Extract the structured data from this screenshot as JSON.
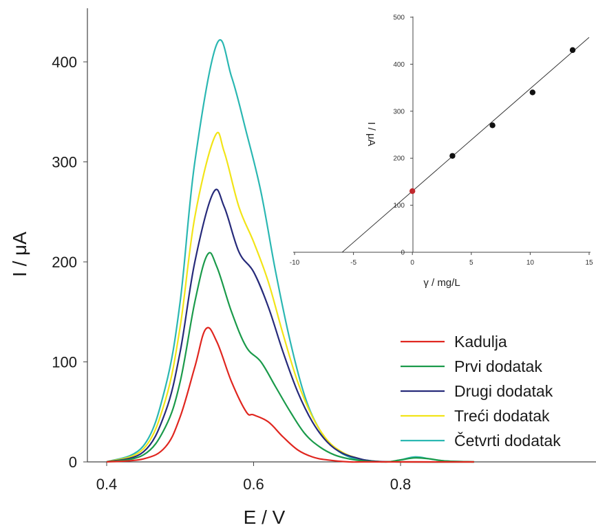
{
  "chart_data": [
    {
      "type": "line",
      "xlabel": "E / V",
      "ylabel": "I / μA",
      "xlim": [
        0.38,
        0.95
      ],
      "ylim": [
        0,
        440
      ],
      "xticks": [
        "0.4",
        "0.6",
        "0.8"
      ],
      "yticks": [
        "0",
        "100",
        "200",
        "300",
        "400"
      ],
      "grid": false,
      "legend_position": "bottom-right",
      "series": [
        {
          "name": "Kadulja",
          "color": "#e0261f",
          "x": [
            0.4,
            0.45,
            0.48,
            0.5,
            0.52,
            0.535,
            0.55,
            0.57,
            0.59,
            0.6,
            0.62,
            0.64,
            0.66,
            0.68,
            0.7,
            0.73,
            0.75,
            0.8,
            0.85,
            0.9
          ],
          "y": [
            0,
            3,
            15,
            45,
            95,
            133,
            120,
            80,
            50,
            47,
            40,
            25,
            12,
            5,
            2,
            0,
            0,
            0,
            0,
            0
          ]
        },
        {
          "name": "Prvi dodatak",
          "color": "#1a9a4a",
          "x": [
            0.4,
            0.45,
            0.48,
            0.5,
            0.52,
            0.537,
            0.55,
            0.57,
            0.59,
            0.61,
            0.63,
            0.65,
            0.67,
            0.69,
            0.71,
            0.73,
            0.75,
            0.78,
            0.8,
            0.82,
            0.84,
            0.86,
            0.9
          ],
          "y": [
            0,
            7,
            35,
            80,
            160,
            207,
            195,
            150,
            115,
            100,
            75,
            50,
            28,
            15,
            7,
            3,
            1,
            0,
            2,
            4,
            3,
            1,
            0
          ]
        },
        {
          "name": "Drugi dodatak",
          "color": "#262a7a",
          "x": [
            0.4,
            0.45,
            0.48,
            0.5,
            0.52,
            0.545,
            0.56,
            0.58,
            0.6,
            0.62,
            0.64,
            0.66,
            0.68,
            0.7,
            0.72,
            0.74,
            0.76,
            0.8,
            0.9
          ],
          "y": [
            0,
            10,
            50,
            110,
            200,
            269,
            255,
            210,
            190,
            155,
            110,
            70,
            40,
            20,
            9,
            4,
            1,
            0,
            0
          ]
        },
        {
          "name": "Treći dodatak",
          "color": "#f2e417",
          "x": [
            0.4,
            0.45,
            0.48,
            0.5,
            0.52,
            0.547,
            0.56,
            0.58,
            0.6,
            0.62,
            0.64,
            0.66,
            0.68,
            0.7,
            0.72,
            0.74,
            0.76,
            0.8,
            0.9
          ],
          "y": [
            0,
            13,
            62,
            135,
            245,
            325,
            310,
            255,
            220,
            180,
            128,
            80,
            45,
            22,
            10,
            4,
            1,
            0,
            0
          ]
        },
        {
          "name": "Četvrti dodatak",
          "color": "#2ab7b2",
          "x": [
            0.4,
            0.45,
            0.48,
            0.5,
            0.52,
            0.55,
            0.57,
            0.59,
            0.61,
            0.63,
            0.65,
            0.67,
            0.69,
            0.71,
            0.73,
            0.75,
            0.78,
            0.8,
            0.82,
            0.84,
            0.86,
            0.9
          ],
          "y": [
            0,
            16,
            75,
            160,
            300,
            418,
            385,
            330,
            270,
            190,
            120,
            65,
            32,
            14,
            5,
            2,
            0,
            2,
            5,
            3,
            1,
            0
          ]
        }
      ]
    },
    {
      "type": "scatter",
      "xlabel": "γ / mg/L",
      "ylabel": "I / μA",
      "xlim": [
        -10,
        15
      ],
      "ylim": [
        0,
        500
      ],
      "xticks": [
        "-10",
        "-5",
        "0",
        "5",
        "10",
        "15"
      ],
      "yticks": [
        "0",
        "100",
        "200",
        "300",
        "400",
        "500"
      ],
      "grid": false,
      "points": [
        {
          "x": 0,
          "y": 130,
          "color": "#c0282d"
        },
        {
          "x": 3.4,
          "y": 205,
          "color": "#111111"
        },
        {
          "x": 6.8,
          "y": 270,
          "color": "#111111"
        },
        {
          "x": 10.2,
          "y": 340,
          "color": "#111111"
        },
        {
          "x": 13.6,
          "y": 430,
          "color": "#111111"
        }
      ],
      "fit_line": {
        "slope": 21.8,
        "intercept": 130,
        "x_range": [
          -5.96,
          15
        ]
      }
    }
  ]
}
